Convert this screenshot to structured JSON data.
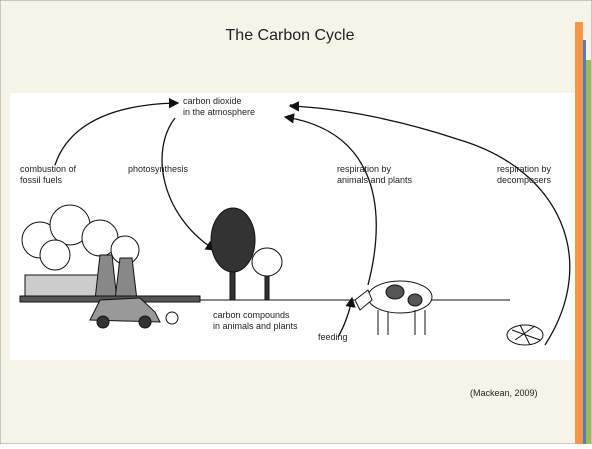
{
  "title": "The Carbon Cycle",
  "diagram": {
    "nodes": [
      {
        "id": "atmosphere",
        "lines": [
          "carbon dioxide",
          "in the atmosphere"
        ]
      },
      {
        "id": "combustion",
        "lines": [
          "combustion of",
          "fossil fuels"
        ]
      },
      {
        "id": "photosynthesis",
        "lines": [
          "photosynthesis"
        ]
      },
      {
        "id": "respiration-animals",
        "lines": [
          "respiration by",
          "animals and plants"
        ]
      },
      {
        "id": "respiration-decomposers",
        "lines": [
          "respiration by",
          "decomposers"
        ]
      },
      {
        "id": "compounds",
        "lines": [
          "carbon compounds",
          "in animals and plants"
        ]
      },
      {
        "id": "feeding",
        "lines": [
          "feeding"
        ]
      }
    ]
  },
  "citation": "(Mackean, 2009)"
}
